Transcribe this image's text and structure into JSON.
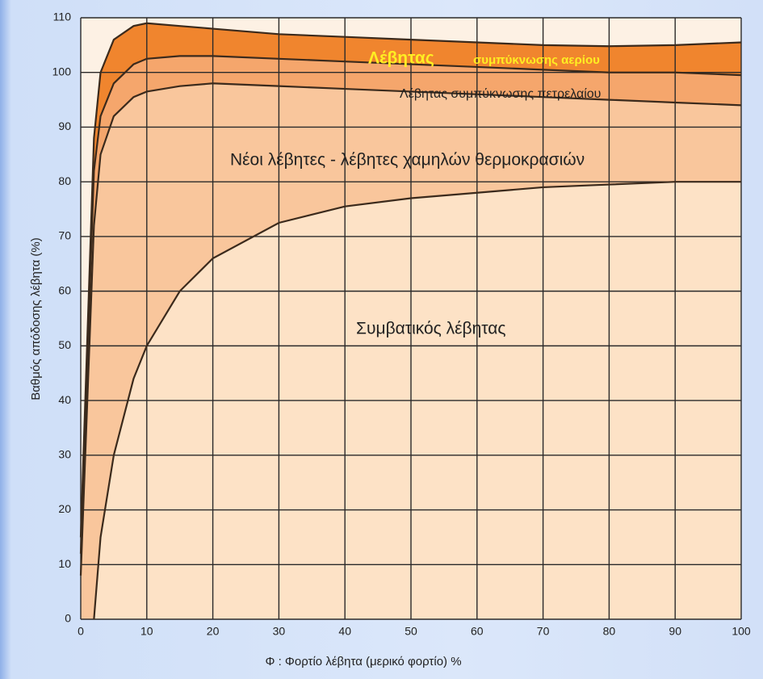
{
  "chart_data": {
    "type": "area",
    "x_label": "Φ : Φορτίο λέβητα (μερικό φορτίο) %",
    "y_label": "Βαθμός απόδοσης λέβητα (%)",
    "x": [
      0,
      2,
      3,
      5,
      8,
      10,
      15,
      20,
      30,
      40,
      50,
      60,
      70,
      80,
      90,
      100
    ],
    "series": [
      {
        "name": "Λέβητας συμπύκνωσης αερίου",
        "color": "#f0852e",
        "values": [
          15,
          88,
          100,
          106,
          108.5,
          109,
          108.5,
          108,
          107,
          106.5,
          106,
          105.5,
          105,
          104.8,
          105,
          105.5
        ]
      },
      {
        "name": "Λέβητας συμπύκνωσης πετρελαίου",
        "color": "#f5a66c",
        "values": [
          12,
          82,
          92,
          98,
          101.5,
          102.5,
          103,
          103,
          102.5,
          102,
          101.5,
          101,
          100.5,
          100,
          100,
          99.5
        ]
      },
      {
        "name": "Νέοι λέβητες - λέβητες χαμηλών θερμοκρασιών",
        "color": "#f9c69c",
        "values": [
          8,
          72,
          85,
          92,
          95.5,
          96.5,
          97.5,
          98,
          97.5,
          97,
          96.5,
          96,
          95.5,
          95,
          94.5,
          94
        ]
      },
      {
        "name": "Συμβατικός λέβητας",
        "color": "#fde2c6",
        "values": [
          null,
          0,
          15,
          30,
          44,
          50,
          60,
          66,
          72.5,
          75.5,
          77,
          78,
          79,
          79.5,
          80,
          80
        ]
      }
    ],
    "annotations": [
      "Λέβητας",
      "συμπύκνωσης αερίου",
      "Λέβητας συμπύκνωσης πετρελαίου",
      "Νέοι λέβητες - λέβητες χαμηλών θερμοκρασιών",
      "Συμβατικός λέβητας"
    ],
    "line_color": "#3b2a1c",
    "xlim": [
      0,
      100
    ],
    "xticks": [
      0,
      10,
      20,
      30,
      40,
      50,
      60,
      70,
      80,
      90,
      100
    ],
    "ylim": [
      0,
      110
    ],
    "yticks": [
      0,
      10,
      20,
      30,
      40,
      50,
      60,
      70,
      80,
      90,
      100,
      110
    ],
    "grid": true
  }
}
